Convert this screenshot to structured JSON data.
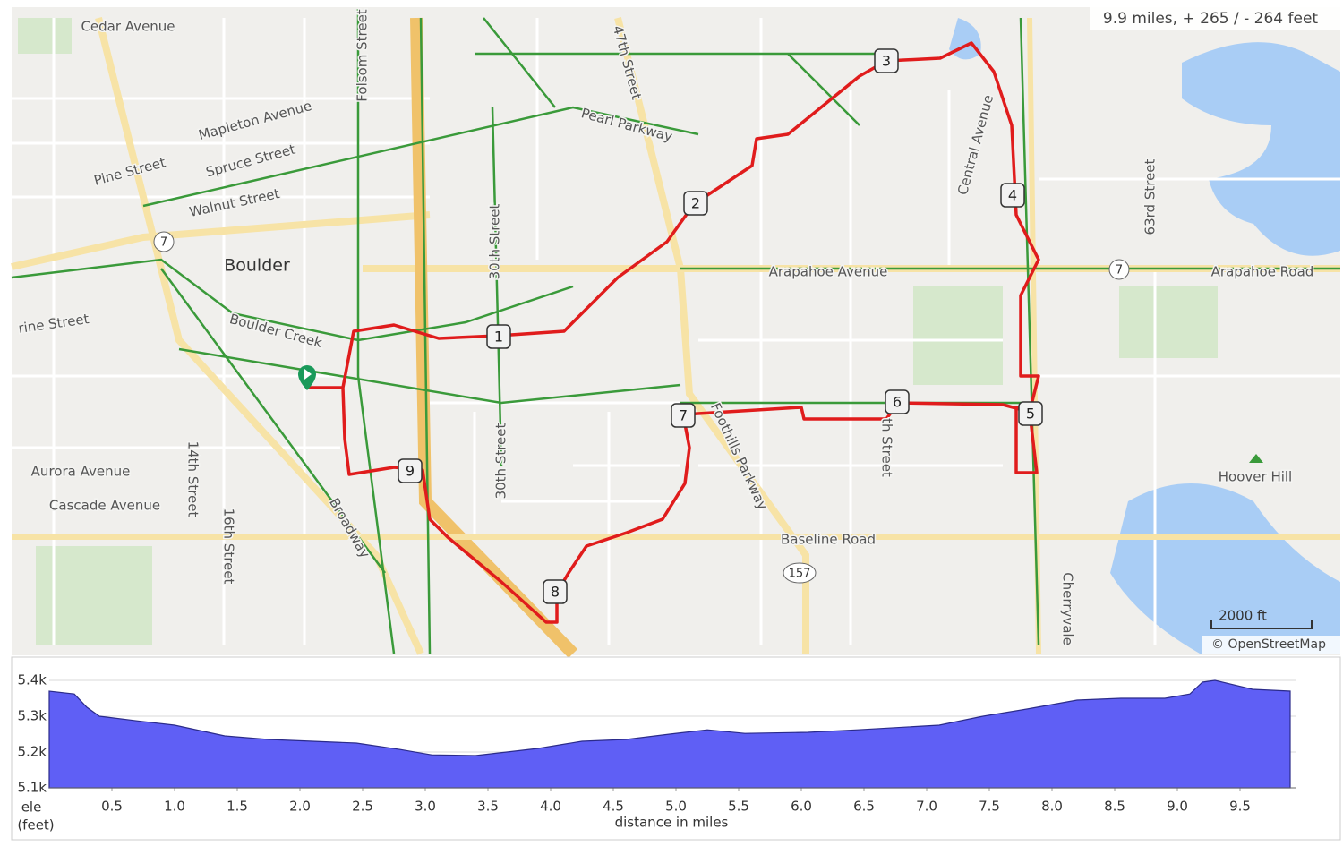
{
  "map": {
    "summary": "9.9 miles, + 265 / - 264 feet",
    "city": "Boulder",
    "labels": [
      "Cedar Avenue",
      "Mapleton Avenue",
      "Spruce Street",
      "Pine Street",
      "Walnut Street",
      "Folsom Street",
      "Pearl Parkway",
      "47th Street",
      "30th Street",
      "Arapahoe Avenue",
      "Arapahoe Road",
      "Central Avenue",
      "63rd Street",
      "Boulder Creek",
      "rine Street",
      "14th Street",
      "16th Street",
      "Aurora Avenue",
      "Cascade Avenue",
      "Broadway",
      "30th Street",
      "Foothills Parkway",
      "Baseline Road",
      "Cherryvale",
      "Hoover Hill",
      "th Street"
    ],
    "markers": [
      "1",
      "2",
      "3",
      "4",
      "5",
      "6",
      "7",
      "8",
      "9"
    ],
    "shields": [
      "7",
      "7",
      "157"
    ],
    "scale": "2000 ft",
    "attribution": "© OpenStreetMap"
  },
  "chart_data": {
    "type": "area",
    "x_label": "distance in miles",
    "y_label": [
      "ele",
      "(feet)"
    ],
    "color": "#5f5ff5",
    "x": [
      0,
      0.2,
      0.3,
      0.4,
      0.7,
      1.0,
      1.4,
      1.75,
      2.1,
      2.45,
      2.8,
      3.05,
      3.4,
      3.9,
      4.25,
      4.6,
      4.95,
      5.25,
      5.55,
      6.05,
      6.45,
      7.1,
      7.45,
      7.8,
      8.2,
      8.55,
      8.9,
      9.1,
      9.2,
      9.3,
      9.6,
      9.9
    ],
    "values": [
      5370,
      5362,
      5325,
      5300,
      5287,
      5275,
      5245,
      5235,
      5230,
      5225,
      5207,
      5192,
      5190,
      5210,
      5230,
      5235,
      5250,
      5262,
      5252,
      5255,
      5262,
      5275,
      5300,
      5320,
      5345,
      5350,
      5350,
      5362,
      5395,
      5400,
      5375,
      5370
    ],
    "xlim": [
      0,
      9.95
    ],
    "ylim": [
      5100,
      5445
    ],
    "xticks": [
      0.5,
      {
        "value": 1,
        "label": "1.0"
      },
      1.5,
      {
        "value": 2,
        "label": "2.0"
      },
      2.5,
      {
        "value": 3,
        "label": "3.0"
      },
      3.5,
      {
        "value": 4,
        "label": "4.0"
      },
      4.5,
      {
        "value": 5,
        "label": "5.0"
      },
      5.5,
      {
        "value": 6,
        "label": "6.0"
      },
      6.5,
      {
        "value": 7,
        "label": "7.0"
      },
      7.5,
      {
        "value": 8,
        "label": "8.0"
      },
      8.5,
      {
        "value": 9,
        "label": "9.0"
      },
      9.5
    ],
    "yticks": [
      {
        "value": 5100,
        "label": "5.1k"
      },
      {
        "value": 5200,
        "label": "5.2k"
      },
      {
        "value": 5300,
        "label": "5.3k"
      },
      {
        "value": 5400,
        "label": "5.4k"
      }
    ],
    "grid": true
  }
}
